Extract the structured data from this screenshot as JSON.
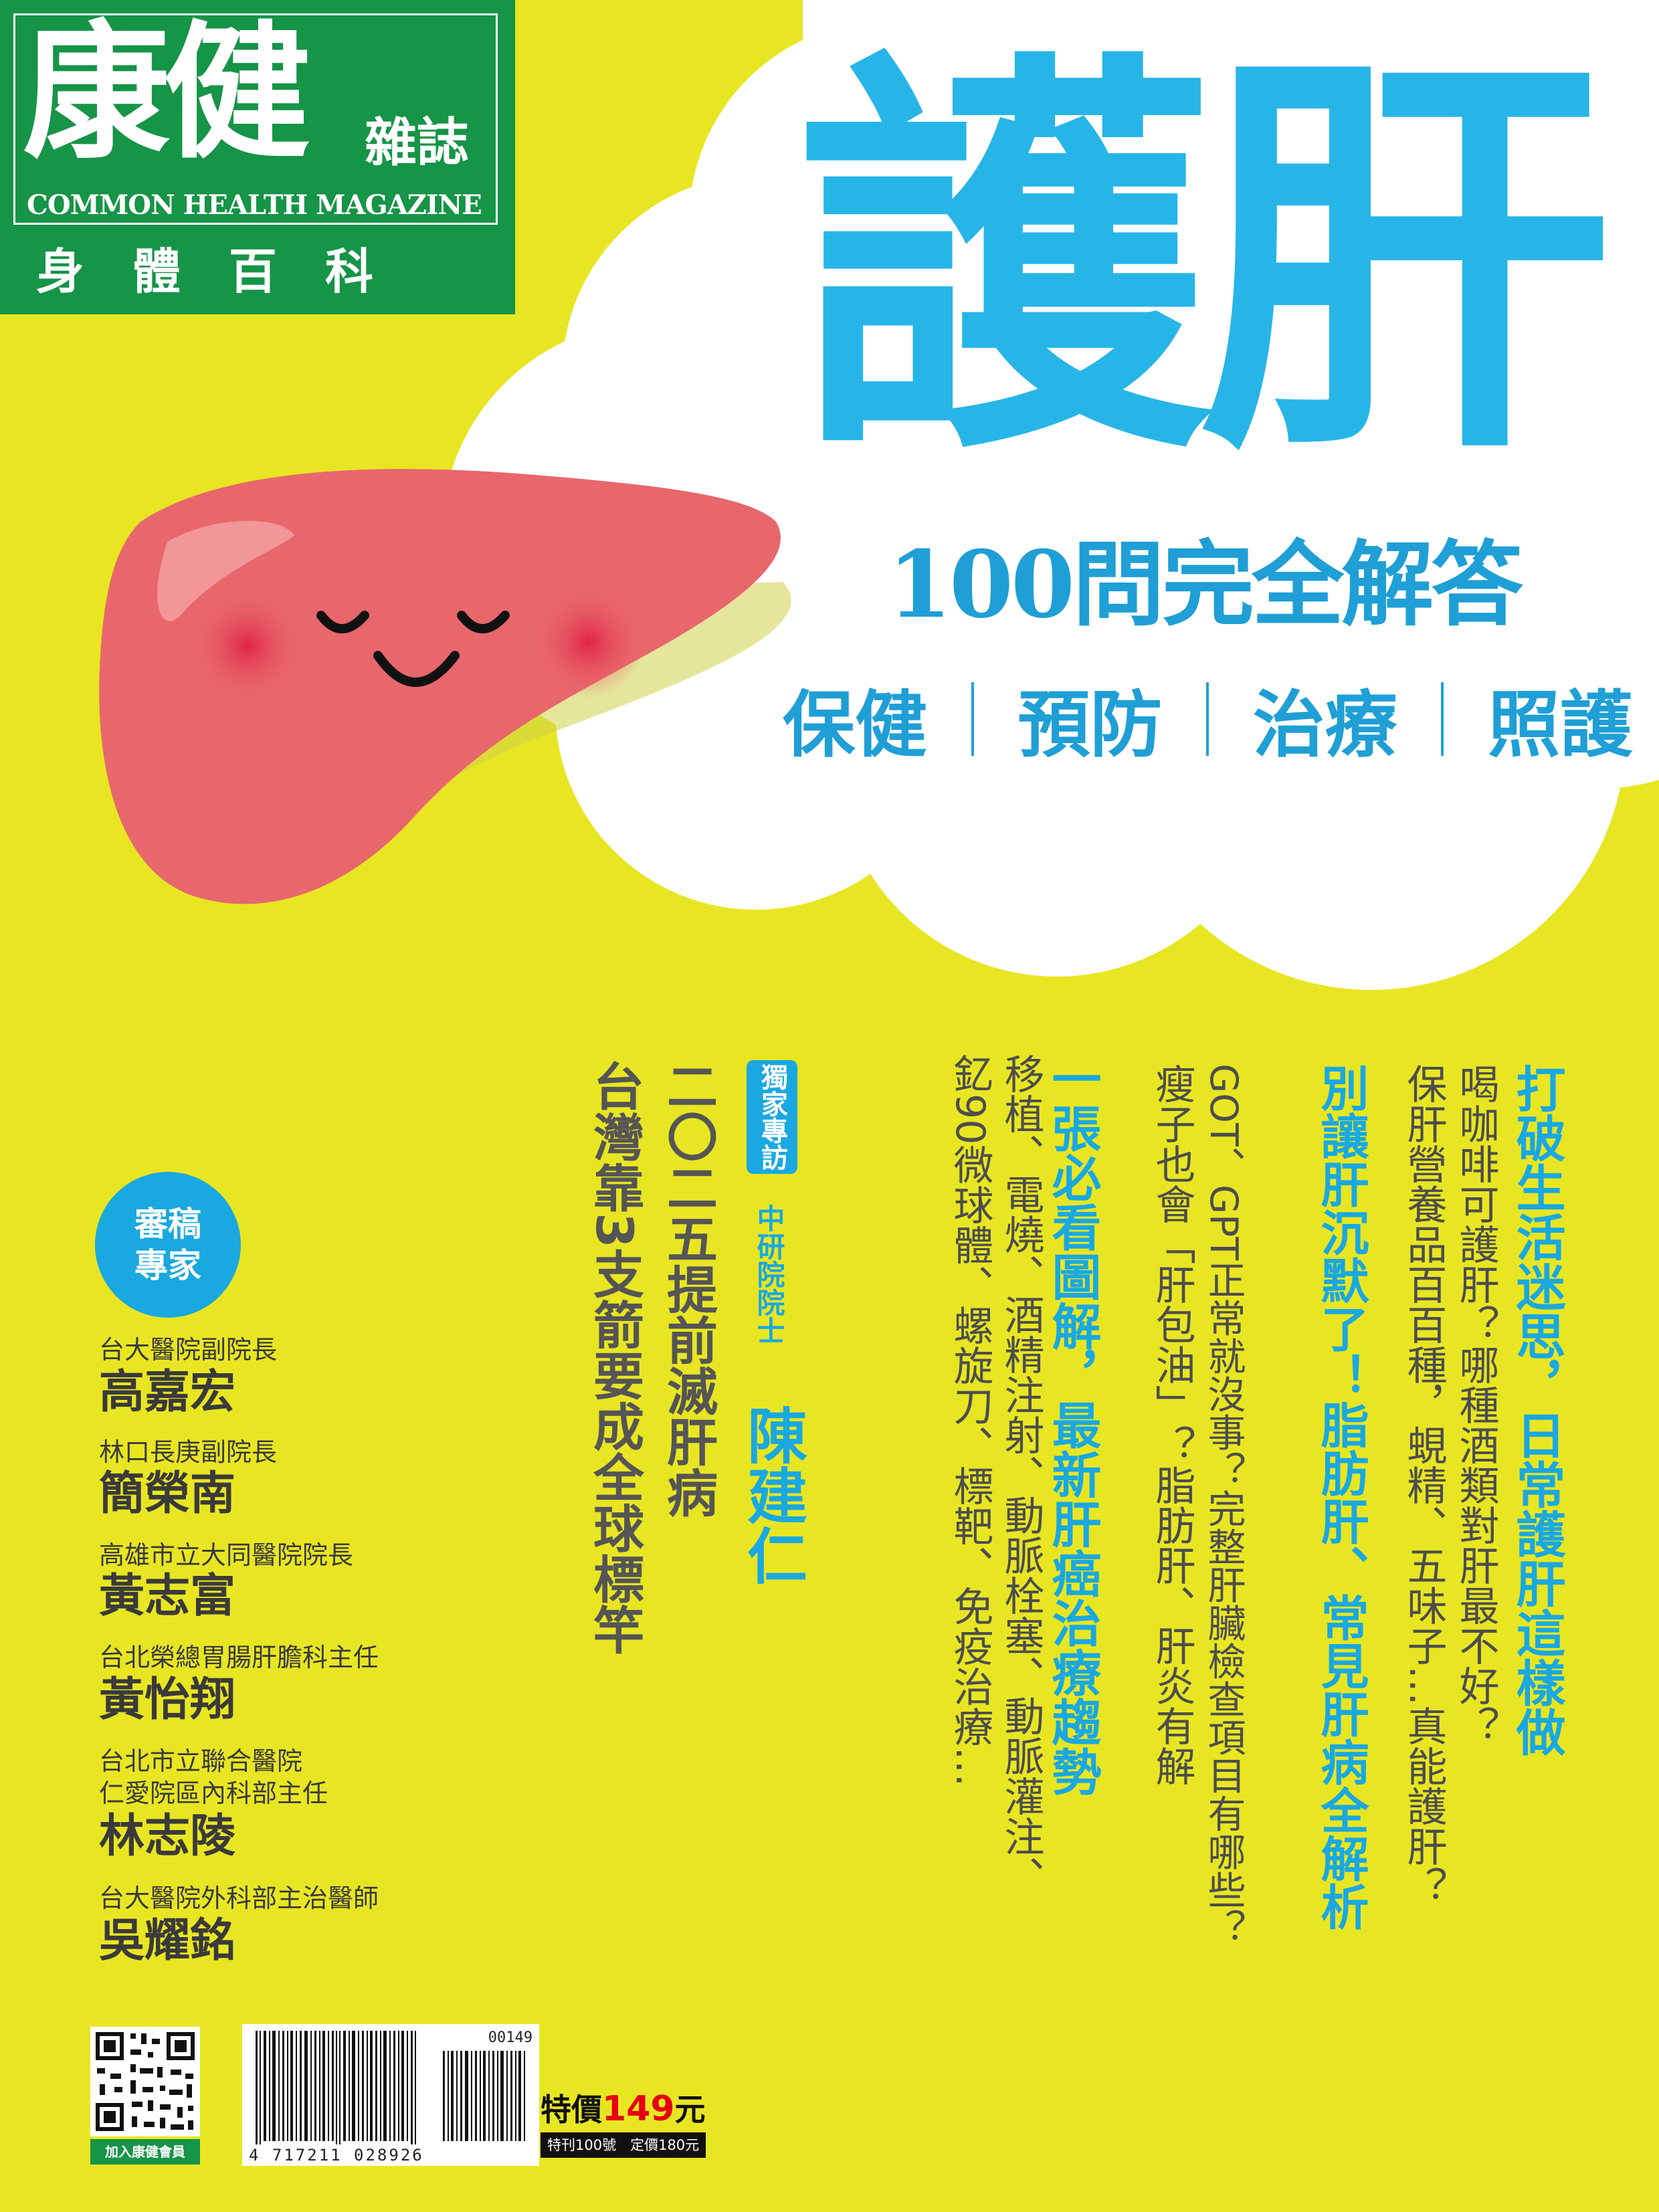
{
  "logo": {
    "name": "康健",
    "zazhi": "雜誌",
    "english": "COMMON HEALTH MAGAZINE",
    "series": "身體百科"
  },
  "title": {
    "main": "護肝",
    "subtitle": "100問完全解答",
    "categories": [
      "保健",
      "預防",
      "治療",
      "照護"
    ]
  },
  "columns": [
    {
      "heading": "打破生活迷思，日常護肝這樣做",
      "lines": [
        "喝咖啡可護肝？哪種酒類對肝最不好？",
        "保肝營養品百百種，蜆精、五味子…真能護肝？"
      ]
    },
    {
      "heading": "別讓肝沉默了！脂肪肝、常見肝病全解析",
      "lines": [
        "GOT、GPT正常就沒事？完整肝臟檢查項目有哪些？",
        "瘦子也會「肝包油」？脂肪肝、肝炎有解"
      ]
    },
    {
      "heading": "一張必看圖解，最新肝癌治療趨勢",
      "lines": [
        "移植、電燒、酒精注射、動脈栓塞、動脈灌注、",
        "釔90微球體、螺旋刀、標靶、免疫治療…"
      ]
    }
  ],
  "exclusive": {
    "badge": "獨家專訪",
    "role": "中研院院士",
    "name": "陳建仁",
    "headline1": "二〇二五提前滅肝病",
    "headline2": "台灣靠3支箭要成全球標竿"
  },
  "experts": {
    "badge": "審稿專家",
    "list": [
      {
        "role": "台大醫院副院長",
        "name": "高嘉宏"
      },
      {
        "role": "林口長庚副院長",
        "name": "簡榮南"
      },
      {
        "role": "高雄市立大同醫院院長",
        "name": "黃志富"
      },
      {
        "role": "台北榮總胃腸肝膽科主任",
        "name": "黃怡翔"
      },
      {
        "role": "台北市立聯合醫院\n仁愛院區內科部主任",
        "name": "林志陵"
      },
      {
        "role": "台大醫院外科部主治醫師",
        "name": "吳耀銘"
      }
    ]
  },
  "footer": {
    "qr_label": "加入康健會員",
    "barcode_top": "00149",
    "barcode_number": "4 717211 028926",
    "price_label": "特價",
    "price_value": "149",
    "price_unit": "元",
    "issue": "特刊100號　定價180元"
  },
  "colors": {
    "background": "#e8e623",
    "title_blue": "#27b5e8",
    "logo_green": "#169447",
    "liver": "#e8676c"
  }
}
